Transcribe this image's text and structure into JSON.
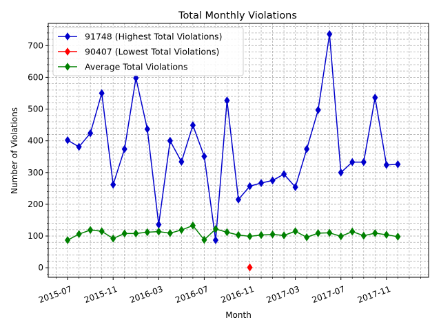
{
  "chart_data": {
    "type": "line",
    "title": "Total Monthly Violations",
    "xlabel": "Month",
    "ylabel": "Number of Violations",
    "x_ticks": [
      "2015-07",
      "2015-11",
      "2016-03",
      "2016-07",
      "2016-11",
      "2017-03",
      "2017-07",
      "2017-11"
    ],
    "x_tick_months": [
      0,
      4,
      8,
      12,
      16,
      20,
      24,
      28
    ],
    "x_range_months": [
      -1.7,
      31.7
    ],
    "ylim": [
      -30,
      770
    ],
    "y_ticks": [
      0,
      100,
      200,
      300,
      400,
      500,
      600,
      700
    ],
    "grid": "dashed",
    "legend_position": "top-left",
    "series": [
      {
        "name": "91748 (Highest Total Violations)",
        "color": "#0000cc",
        "marker": "thin_diamond",
        "x_months": [
          0,
          1,
          2,
          3,
          4,
          5,
          6,
          7,
          8,
          9,
          10,
          11,
          12,
          13,
          14,
          15,
          16,
          17,
          18,
          19,
          20,
          21,
          22,
          23,
          24,
          25,
          26,
          27,
          28,
          29
        ],
        "values": [
          402,
          381,
          424,
          550,
          262,
          374,
          598,
          437,
          136,
          400,
          334,
          449,
          351,
          87,
          527,
          215,
          257,
          267,
          275,
          295,
          254,
          374,
          497,
          736,
          300,
          333,
          333,
          536,
          324,
          326
        ]
      },
      {
        "name": "90407 (Lowest Total Violations)",
        "color": "#ff0000",
        "marker": "thin_diamond",
        "x_months": [
          16
        ],
        "values": [
          1
        ]
      },
      {
        "name": "Average Total Violations",
        "color": "#008000",
        "marker": "thin_diamond",
        "x_months": [
          0,
          1,
          2,
          3,
          4,
          5,
          6,
          7,
          8,
          9,
          10,
          11,
          12,
          13,
          14,
          15,
          16,
          17,
          18,
          19,
          20,
          21,
          22,
          23,
          24,
          25,
          26,
          27,
          28,
          29
        ],
        "values": [
          87,
          106,
          119,
          115,
          92,
          108,
          108,
          112,
          114,
          109,
          119,
          133,
          88,
          122,
          112,
          103,
          99,
          103,
          105,
          102,
          115,
          96,
          109,
          110,
          99,
          114,
          101,
          109,
          104,
          98
        ]
      }
    ]
  }
}
